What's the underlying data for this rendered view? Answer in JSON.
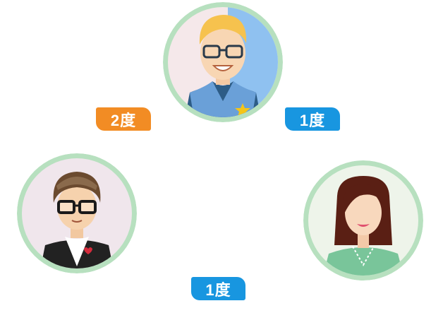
{
  "people": [
    {
      "name": "top",
      "avatar_icon": "man-glasses-blond-icon"
    },
    {
      "name": "left",
      "avatar_icon": "man-glasses-hat-icon"
    },
    {
      "name": "right",
      "avatar_icon": "woman-long-hair-icon"
    }
  ],
  "edges": [
    {
      "label": "2度",
      "color": "#f28c24"
    },
    {
      "label": "1度",
      "color": "#1896e0"
    },
    {
      "label": "1度",
      "color": "#1896e0"
    }
  ],
  "colors": {
    "ring": "#b7e0bf",
    "orange": "#f28c24",
    "blue": "#1896e0"
  }
}
